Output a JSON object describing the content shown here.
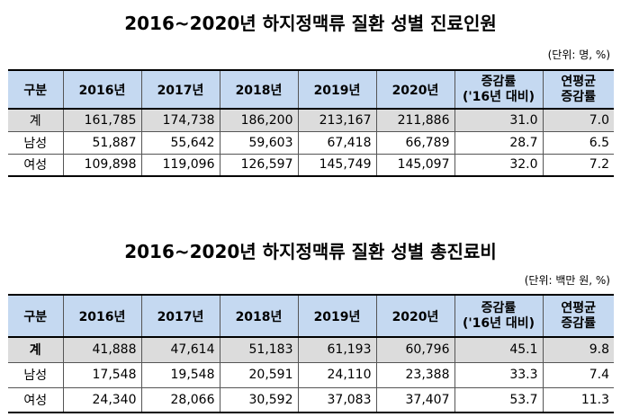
{
  "table1": {
    "title": "2016~2020년 하지정맥류 질환 성별 진료인원",
    "unit": "(단위: 명, %)",
    "headers": {
      "category": "구분",
      "years": [
        "2016년",
        "2017년",
        "2018년",
        "2019년",
        "2020년"
      ],
      "change_line1": "증감률",
      "change_line2": "('16년 대비)",
      "cagr_line1": "연평균",
      "cagr_line2": "증감률"
    },
    "rows": [
      {
        "label": "계",
        "values": [
          "161,785",
          "174,738",
          "186,200",
          "213,167",
          "211,886"
        ],
        "change": "31.0",
        "cagr": "7.0"
      },
      {
        "label": "남성",
        "values": [
          "51,887",
          "55,642",
          "59,603",
          "67,418",
          "66,789"
        ],
        "change": "28.7",
        "cagr": "6.5"
      },
      {
        "label": "여성",
        "values": [
          "109,898",
          "119,096",
          "126,597",
          "145,749",
          "145,097"
        ],
        "change": "32.0",
        "cagr": "7.2"
      }
    ]
  },
  "table2": {
    "title": "2016~2020년 하지정맥류 질환 성별 총진료비",
    "unit": "(단위: 백만 원, %)",
    "headers": {
      "category": "구분",
      "years": [
        "2016년",
        "2017년",
        "2018년",
        "2019년",
        "2020년"
      ],
      "change_line1": "증감률",
      "change_line2": "('16년 대비)",
      "cagr_line1": "연평균",
      "cagr_line2": "증감률"
    },
    "rows": [
      {
        "label": "계",
        "values": [
          "41,888",
          "47,614",
          "51,183",
          "61,193",
          "60,796"
        ],
        "change": "45.1",
        "cagr": "9.8"
      },
      {
        "label": "남성",
        "values": [
          "17,548",
          "19,548",
          "20,591",
          "24,110",
          "23,388"
        ],
        "change": "33.3",
        "cagr": "7.4"
      },
      {
        "label": "여성",
        "values": [
          "24,340",
          "28,066",
          "30,592",
          "37,083",
          "37,407"
        ],
        "change": "53.7",
        "cagr": "11.3"
      }
    ]
  }
}
